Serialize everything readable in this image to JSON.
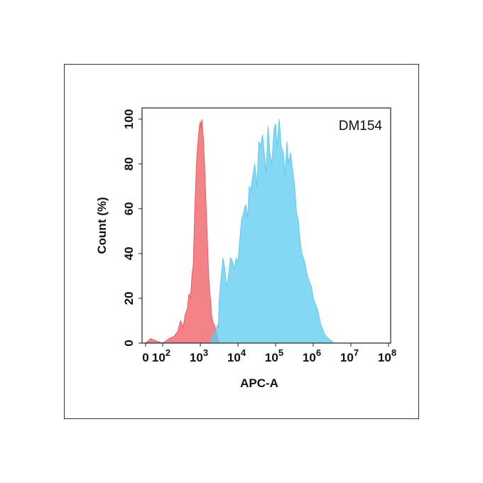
{
  "chart_data": {
    "type": "area",
    "annotation": "DM154",
    "xlabel": "APC-A",
    "ylabel": "Count  (%)",
    "xscale": "log",
    "xlim": [
      0,
      100000000
    ],
    "ylim": [
      0,
      105
    ],
    "grid": false,
    "x_ticks": [
      {
        "value": 0,
        "base": "0",
        "exp": ""
      },
      {
        "value": 100,
        "base": "10",
        "exp": "2"
      },
      {
        "value": 1000,
        "base": "10",
        "exp": "3"
      },
      {
        "value": 10000,
        "base": "10",
        "exp": "4"
      },
      {
        "value": 100000,
        "base": "10",
        "exp": "5"
      },
      {
        "value": 1000000,
        "base": "10",
        "exp": "6"
      },
      {
        "value": 10000000,
        "base": "10",
        "exp": "7"
      },
      {
        "value": 100000000,
        "base": "10",
        "exp": "8"
      }
    ],
    "y_ticks": [
      "0",
      "20",
      "40",
      "60",
      "80",
      "100"
    ],
    "series": [
      {
        "color": "#f0595f",
        "x": [
          0,
          30,
          60,
          100,
          150,
          200,
          250,
          300,
          350,
          400,
          450,
          500,
          550,
          600,
          650,
          700,
          750,
          800,
          850,
          900,
          950,
          1000,
          1050,
          1100,
          1200,
          1300,
          1400,
          1500,
          1600,
          1700,
          1800,
          1900,
          2000,
          2200,
          2400,
          2600,
          2800,
          3000,
          3200
        ],
        "values": [
          0,
          2,
          1,
          0,
          2,
          3,
          5,
          10,
          7,
          13,
          15,
          22,
          20,
          30,
          35,
          55,
          70,
          82,
          88,
          93,
          97,
          99,
          96,
          100,
          92,
          80,
          65,
          52,
          38,
          28,
          22,
          18,
          12,
          9,
          8,
          5,
          3,
          1,
          0
        ]
      },
      {
        "color": "#5bcbf0",
        "x": [
          1800,
          2000,
          2200,
          2500,
          2800,
          3000,
          3200,
          3600,
          4000,
          4500,
          5000,
          5600,
          6300,
          7000,
          8000,
          9000,
          10000,
          11000,
          12500,
          14000,
          16000,
          18000,
          20000,
          22000,
          25000,
          28000,
          32000,
          36000,
          40000,
          45000,
          50000,
          56000,
          63000,
          70000,
          80000,
          90000,
          100000,
          110000,
          125000,
          140000,
          160000,
          180000,
          200000,
          220000,
          250000,
          280000,
          320000,
          360000,
          400000,
          450000,
          500000,
          600000,
          700000,
          800000,
          900000,
          1000000,
          1300000,
          1600000,
          2000000,
          2500000,
          3000000,
          3500000
        ],
        "values": [
          0,
          2,
          5,
          3,
          8,
          7,
          20,
          30,
          38,
          33,
          25,
          30,
          38,
          37,
          33,
          38,
          36,
          45,
          55,
          58,
          62,
          56,
          70,
          68,
          75,
          80,
          70,
          90,
          88,
          93,
          85,
          76,
          97,
          85,
          80,
          95,
          98,
          88,
          100,
          88,
          85,
          75,
          90,
          80,
          85,
          78,
          70,
          58,
          55,
          45,
          40,
          36,
          30,
          27,
          25,
          20,
          15,
          8,
          4,
          2,
          1,
          0
        ]
      }
    ]
  }
}
